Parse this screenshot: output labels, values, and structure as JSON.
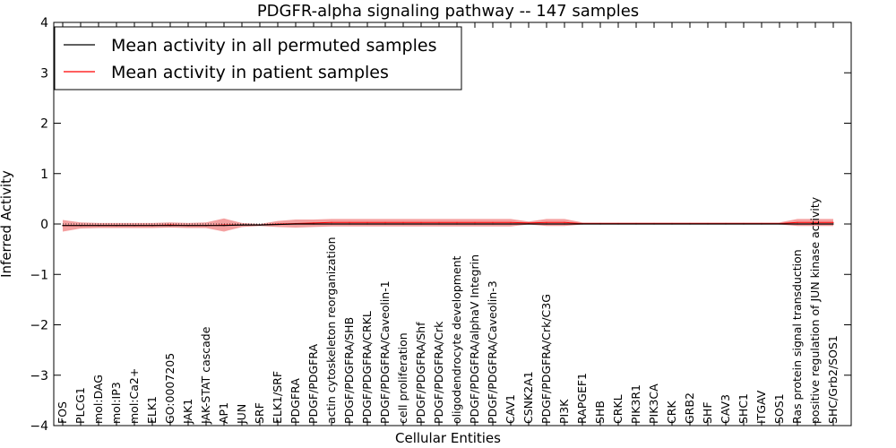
{
  "chart_data": {
    "type": "line",
    "title": "PDGFR-alpha signaling pathway -- 147 samples",
    "xlabel": "Cellular Entities",
    "ylabel": "Inferred Activity",
    "ylim": [
      -4,
      4
    ],
    "yticks": [
      -4,
      -3,
      -2,
      -1,
      0,
      1,
      2,
      3,
      4
    ],
    "ytick_labels": [
      "−4",
      "−3",
      "−2",
      "−1",
      "0",
      "1",
      "2",
      "3",
      "4"
    ],
    "grid": false,
    "legend_position": "top-left",
    "categories": [
      "FOS",
      "PLCG1",
      "mol:DAG",
      "mol:IP3",
      "mol:Ca2+",
      "ELK1",
      "GO:0007205",
      "JAK1",
      "JAK-STAT cascade",
      "AP1",
      "JUN",
      "SRF",
      "ELK1/SRF",
      "PDGFRA",
      "PDGF/PDGFRA",
      "actin cytoskeleton reorganization",
      "PDGF/PDGFRA/SHB",
      "PDGF/PDGFRA/CRKL",
      "PDGF/PDGFRA/Caveolin-1",
      "cell proliferation",
      "PDGF/PDGFRA/Shf",
      "PDGF/PDGFRA/Crk",
      "oligodendrocyte development",
      "PDGF/PDGFRA/alphaV Integrin",
      "PDGF/PDGFRA/Caveolin-3",
      "CAV1",
      "CSNK2A1",
      "PDGF/PDGFRA/Crk/C3G",
      "PI3K",
      "RAPGEF1",
      "SHB",
      "CRKL",
      "PIK3R1",
      "PIK3CA",
      "CRK",
      "GRB2",
      "SHF",
      "CAV3",
      "SHC1",
      "ITGAV",
      "SOS1",
      "Ras protein signal transduction",
      "positive regulation of JUN kinase activity",
      "SHC/Grb2/SOS1"
    ],
    "series": [
      {
        "name": "Mean activity in all permuted samples",
        "color": "#000000",
        "style": "solid",
        "values": [
          -0.03,
          -0.03,
          -0.03,
          -0.03,
          -0.03,
          -0.03,
          -0.03,
          -0.03,
          -0.03,
          -0.03,
          -0.02,
          -0.02,
          -0.01,
          0.0,
          0.0,
          0.0,
          0.0,
          0.0,
          0.0,
          0.0,
          0.0,
          0.0,
          0.0,
          0.0,
          0.0,
          0.0,
          0.0,
          0.0,
          0.0,
          0.0,
          0.0,
          0.0,
          0.0,
          0.0,
          0.0,
          0.0,
          0.0,
          0.0,
          0.0,
          0.0,
          0.0,
          0.0,
          0.0,
          0.0
        ]
      },
      {
        "name": "Mean activity in patient samples",
        "color": "#ff0000",
        "style": "solid",
        "values": [
          -0.03,
          -0.03,
          -0.03,
          -0.03,
          -0.03,
          -0.03,
          -0.02,
          -0.03,
          -0.03,
          -0.02,
          -0.02,
          -0.02,
          0.0,
          0.01,
          0.02,
          0.03,
          0.03,
          0.03,
          0.03,
          0.03,
          0.03,
          0.03,
          0.03,
          0.03,
          0.03,
          0.03,
          0.02,
          0.03,
          0.03,
          0.01,
          0.01,
          0.01,
          0.01,
          0.01,
          0.01,
          0.01,
          0.01,
          0.01,
          0.01,
          0.01,
          0.01,
          0.03,
          0.03,
          0.03
        ],
        "band_upper": [
          0.08,
          0.03,
          0.02,
          0.02,
          0.02,
          0.02,
          0.03,
          0.02,
          0.03,
          0.11,
          0.02,
          0.0,
          0.06,
          0.09,
          0.09,
          0.1,
          0.1,
          0.1,
          0.1,
          0.1,
          0.1,
          0.1,
          0.1,
          0.1,
          0.1,
          0.1,
          0.05,
          0.1,
          0.1,
          0.03,
          0.03,
          0.03,
          0.03,
          0.03,
          0.03,
          0.03,
          0.03,
          0.03,
          0.03,
          0.03,
          0.03,
          0.1,
          0.1,
          0.1
        ],
        "band_lower": [
          -0.15,
          -0.09,
          -0.08,
          -0.08,
          -0.08,
          -0.08,
          -0.07,
          -0.08,
          -0.08,
          -0.15,
          -0.06,
          -0.04,
          -0.06,
          -0.07,
          -0.06,
          -0.05,
          -0.05,
          -0.05,
          -0.05,
          -0.05,
          -0.05,
          -0.05,
          -0.05,
          -0.05,
          -0.05,
          -0.05,
          -0.01,
          -0.04,
          -0.04,
          -0.01,
          -0.01,
          -0.01,
          -0.01,
          -0.01,
          -0.01,
          -0.01,
          -0.01,
          -0.01,
          -0.01,
          -0.01,
          -0.01,
          -0.04,
          -0.04,
          -0.04
        ]
      }
    ]
  },
  "colors": {
    "band_fill": "#f08080",
    "axis": "#000000",
    "background": "#ffffff"
  }
}
